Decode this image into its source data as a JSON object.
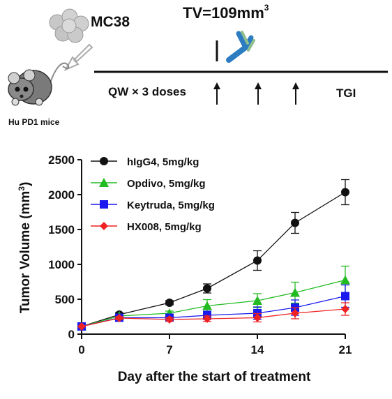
{
  "schematic": {
    "cell_line": "MC38",
    "tv_prefix": "TV=109mm",
    "tv_exp": "3",
    "dosing": "QW × 3 doses",
    "tgi": "TGI",
    "mouse_label": "Hu PD1 mice",
    "arrows_count": 3
  },
  "chart_data": {
    "type": "line",
    "xlabel": "Day after the start of treatment",
    "ylabel": "Tumor Volume (mm",
    "ylabel_exp": "3",
    "ylabel_close": ")",
    "xlim": [
      0,
      21
    ],
    "ylim": [
      0,
      2500
    ],
    "xticks": [
      0,
      7,
      14,
      21
    ],
    "yticks": [
      0,
      500,
      1000,
      1500,
      2000,
      2500
    ],
    "legend_placement": "top-left",
    "grid": false,
    "x": [
      0,
      3,
      7,
      10,
      14,
      17,
      21
    ],
    "series": [
      {
        "name": "hIgG4, 5mg/kg",
        "color": "#111111",
        "marker": "circle",
        "values": [
          110,
          280,
          450,
          655,
          1055,
          1595,
          2035
        ],
        "errors": [
          10,
          25,
          30,
          65,
          140,
          150,
          180
        ]
      },
      {
        "name": "Opdivo, 5mg/kg",
        "color": "#22bb22",
        "marker": "triangle",
        "values": [
          110,
          260,
          300,
          405,
          480,
          595,
          775
        ],
        "errors": [
          10,
          25,
          30,
          90,
          100,
          150,
          200
        ]
      },
      {
        "name": "Keytruda, 5mg/kg",
        "color": "#1a1aee",
        "marker": "square",
        "values": [
          110,
          235,
          235,
          270,
          300,
          380,
          545
        ],
        "errors": [
          10,
          20,
          25,
          60,
          90,
          110,
          160
        ]
      },
      {
        "name": "HX008, 5mg/kg",
        "color": "#ee2222",
        "marker": "diamond",
        "values": [
          110,
          230,
          210,
          220,
          235,
          300,
          360
        ],
        "errors": [
          10,
          20,
          25,
          40,
          60,
          80,
          90
        ]
      }
    ]
  }
}
